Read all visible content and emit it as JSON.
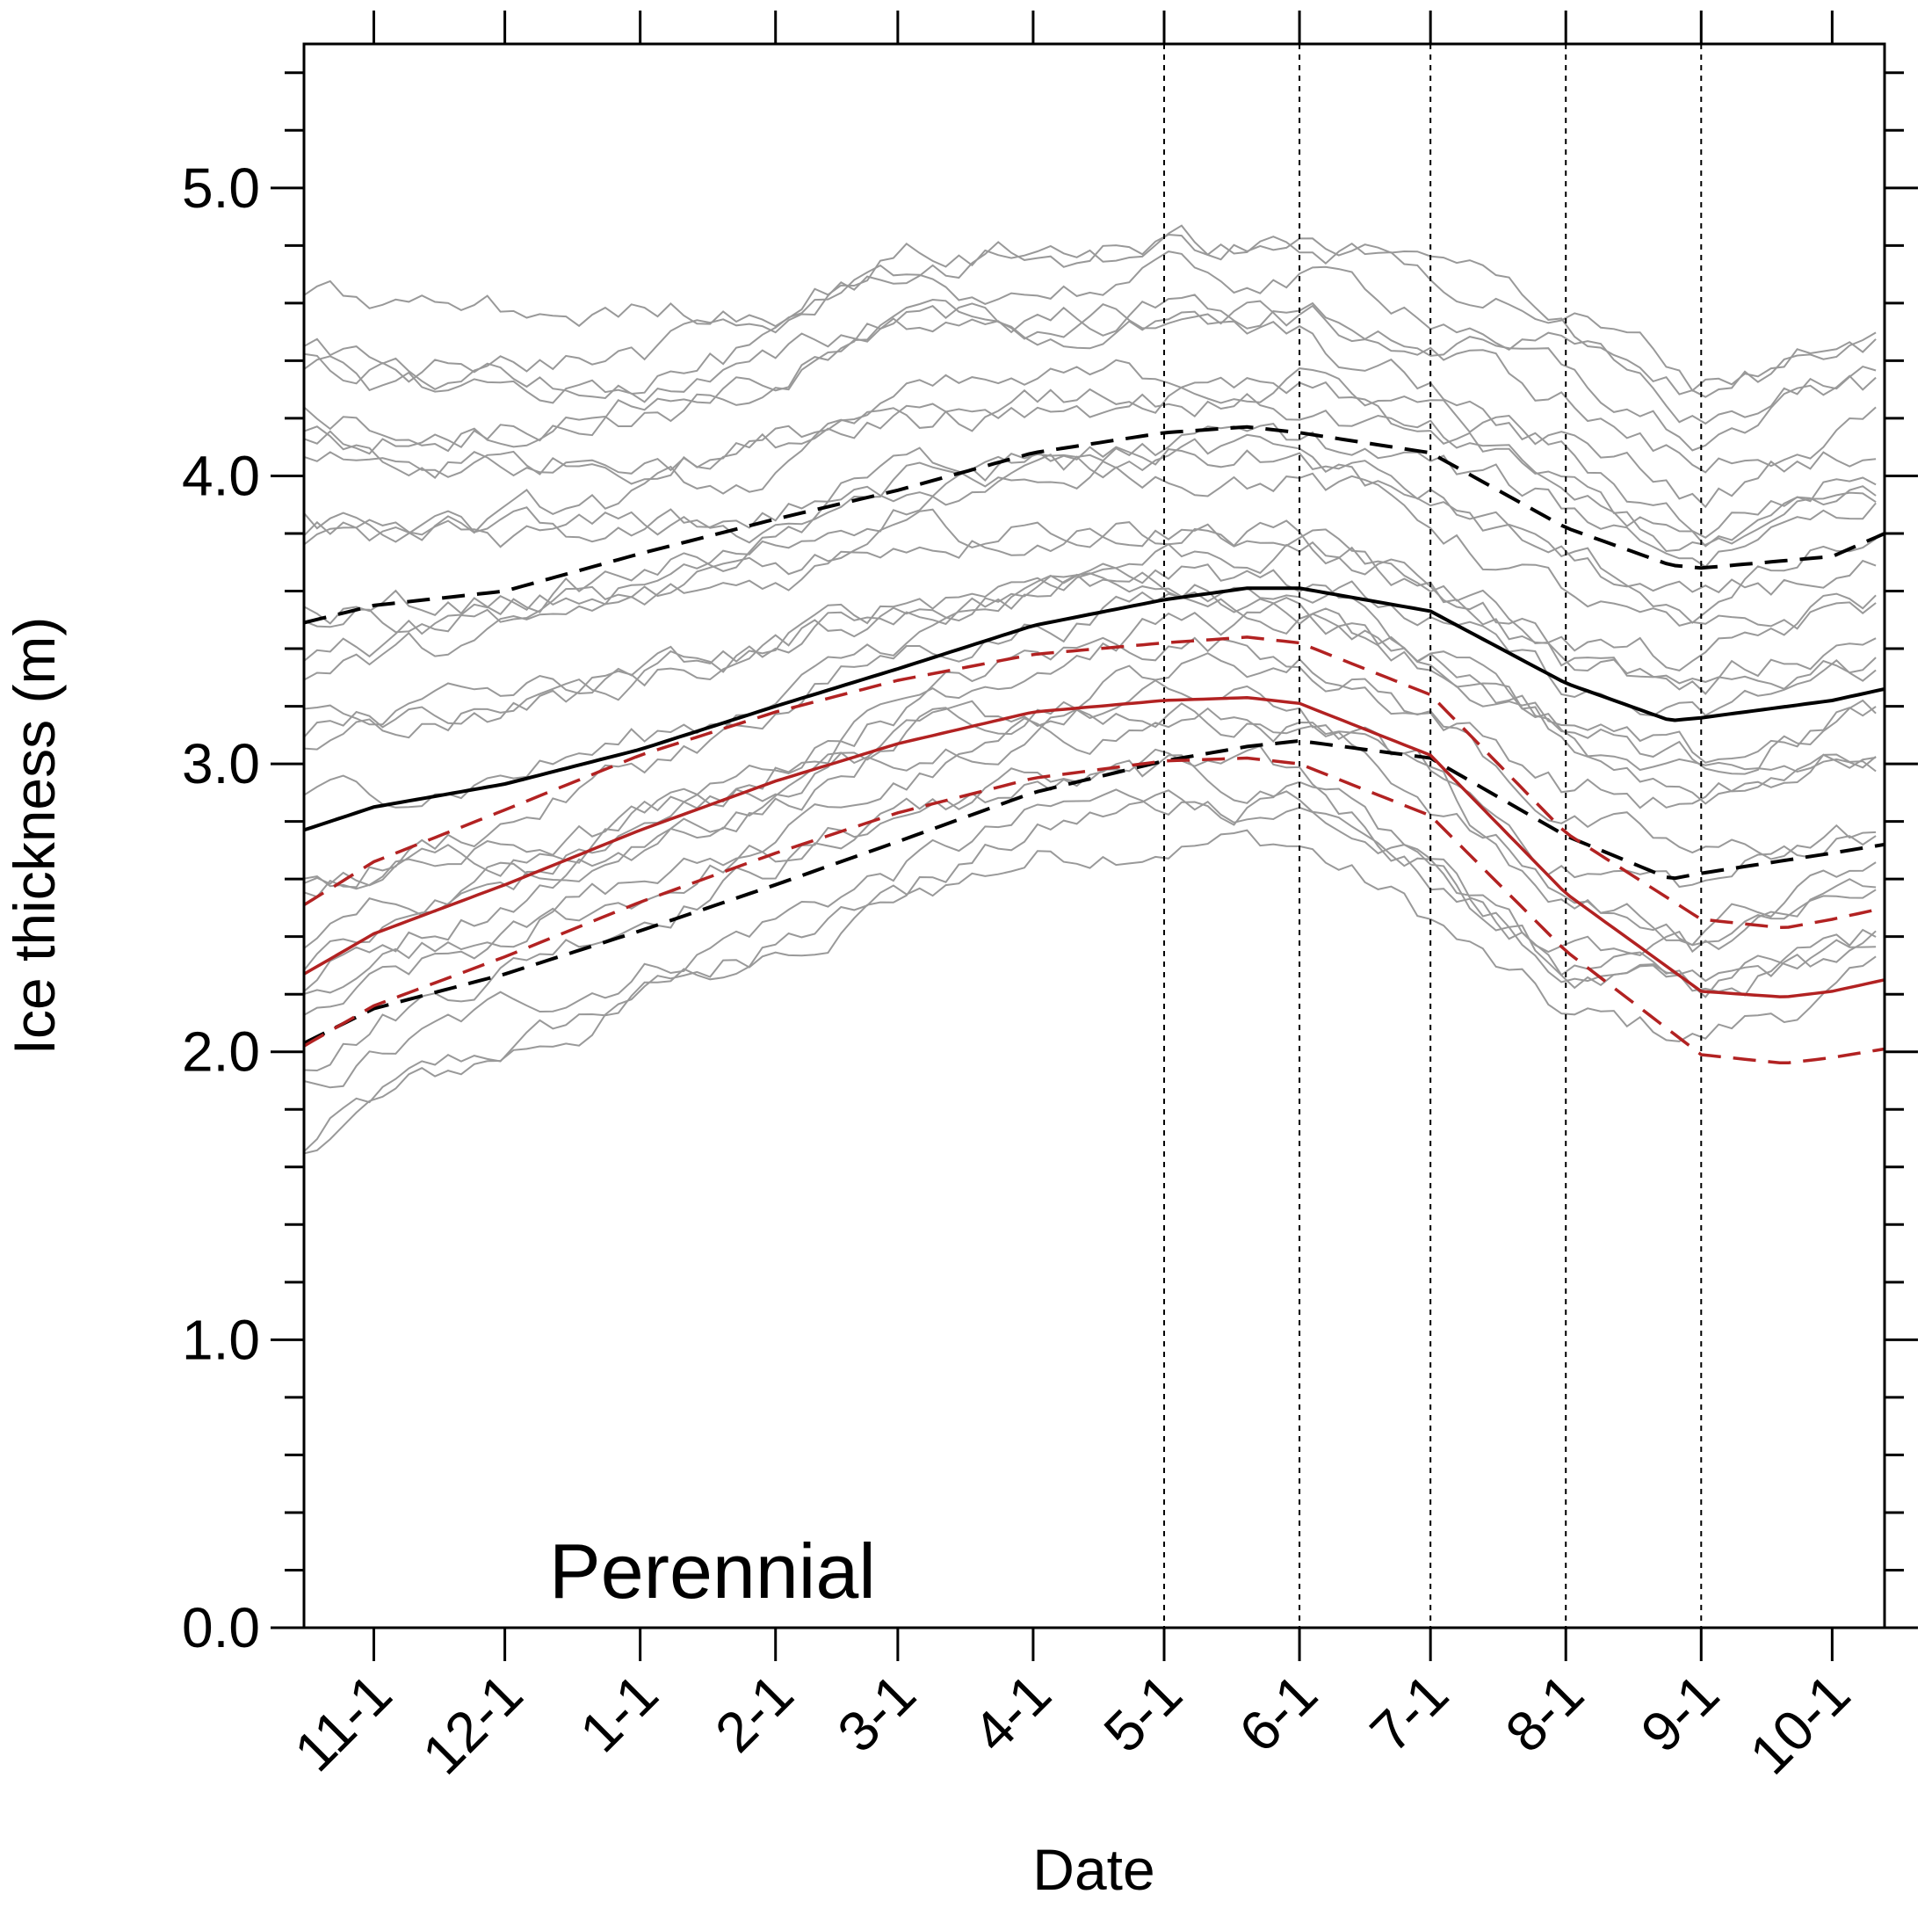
{
  "chart_data": {
    "type": "line",
    "title": "",
    "annotation": "Perennial",
    "xlabel": "Date",
    "ylabel": "Ice thickness (m)",
    "ylim": [
      0.0,
      5.5
    ],
    "x_axis": {
      "start": "10-16",
      "end": "10-13",
      "ticks": [
        "11-1",
        "12-1",
        "1-1",
        "2-1",
        "3-1",
        "4-1",
        "5-1",
        "6-1",
        "7-1",
        "8-1",
        "9-1",
        "10-1"
      ]
    },
    "y_ticks": [
      "0.0",
      "1.0",
      "2.0",
      "3.0",
      "4.0",
      "5.0"
    ],
    "vertical_reference_lines": [
      "5-1",
      "6-1",
      "7-1",
      "8-1",
      "9-1"
    ],
    "grid": false,
    "colors": {
      "ensemble": "#999999",
      "black": "#000000",
      "red": "#b22222"
    },
    "series": [
      {
        "style": "black-solid",
        "x": [
          "10-16",
          "11-1",
          "12-1",
          "1-1",
          "2-1",
          "3-1",
          "4-1",
          "5-1",
          "5-20",
          "6-1",
          "7-1",
          "8-1",
          "8-25",
          "9-1",
          "10-1",
          "10-13"
        ],
        "values": [
          2.77,
          2.85,
          2.93,
          3.05,
          3.2,
          3.33,
          3.48,
          3.57,
          3.61,
          3.61,
          3.53,
          3.28,
          3.15,
          3.16,
          3.22,
          3.26
        ]
      },
      {
        "style": "black-dashed",
        "x": [
          "10-16",
          "11-1",
          "12-1",
          "1-1",
          "2-1",
          "3-1",
          "4-1",
          "5-1",
          "5-20",
          "6-1",
          "7-1",
          "8-1",
          "8-25",
          "9-1",
          "10-1",
          "10-13"
        ],
        "values": [
          3.49,
          3.55,
          3.6,
          3.73,
          3.85,
          3.95,
          4.08,
          4.15,
          4.17,
          4.15,
          4.08,
          3.82,
          3.69,
          3.68,
          3.72,
          3.8
        ]
      },
      {
        "style": "black-dashed",
        "x": [
          "10-16",
          "11-1",
          "12-1",
          "1-1",
          "2-1",
          "3-1",
          "4-1",
          "5-1",
          "5-20",
          "6-1",
          "7-1",
          "8-1",
          "8-25",
          "9-1",
          "10-1",
          "10-13"
        ],
        "values": [
          2.03,
          2.15,
          2.27,
          2.42,
          2.58,
          2.73,
          2.9,
          3.01,
          3.06,
          3.08,
          3.02,
          2.75,
          2.6,
          2.62,
          2.69,
          2.72
        ]
      },
      {
        "style": "red-solid",
        "x": [
          "10-16",
          "11-1",
          "12-1",
          "1-1",
          "2-1",
          "3-1",
          "4-1",
          "5-1",
          "5-20",
          "6-1",
          "7-1",
          "8-1",
          "9-1",
          "9-20",
          "10-1",
          "10-13"
        ],
        "values": [
          2.27,
          2.41,
          2.58,
          2.77,
          2.94,
          3.07,
          3.18,
          3.22,
          3.23,
          3.21,
          3.03,
          2.55,
          2.21,
          2.19,
          2.21,
          2.25
        ]
      },
      {
        "style": "red-dashed",
        "x": [
          "10-16",
          "11-1",
          "12-1",
          "1-1",
          "2-1",
          "3-1",
          "4-1",
          "5-1",
          "5-20",
          "6-1",
          "7-1",
          "8-1",
          "9-1",
          "9-20",
          "10-1",
          "10-13"
        ],
        "values": [
          2.51,
          2.66,
          2.84,
          3.03,
          3.18,
          3.29,
          3.38,
          3.42,
          3.44,
          3.42,
          3.24,
          2.76,
          2.46,
          2.43,
          2.46,
          2.5
        ]
      },
      {
        "style": "red-dashed",
        "x": [
          "10-16",
          "11-1",
          "12-1",
          "1-1",
          "2-1",
          "3-1",
          "4-1",
          "5-1",
          "5-20",
          "6-1",
          "7-1",
          "8-1",
          "9-1",
          "9-20",
          "10-1",
          "10-13"
        ],
        "values": [
          2.02,
          2.16,
          2.33,
          2.52,
          2.69,
          2.83,
          2.95,
          3.01,
          3.02,
          3.0,
          2.82,
          2.35,
          1.99,
          1.96,
          1.98,
          2.01
        ]
      }
    ],
    "ensemble_members": {
      "count": 31,
      "color": "#999999",
      "x": [
        "10-16",
        "11-1",
        "12-1",
        "1-1",
        "2-1",
        "3-1",
        "4-1",
        "5-1",
        "6-1",
        "7-1",
        "8-1",
        "9-1",
        "10-1",
        "10-13"
      ],
      "upper_envelope": [
        4.66,
        4.6,
        4.58,
        4.6,
        4.66,
        4.85,
        4.85,
        4.87,
        4.85,
        4.77,
        4.62,
        4.35,
        4.5,
        4.5
      ],
      "lower_envelope": [
        1.61,
        1.75,
        1.92,
        2.1,
        2.28,
        2.45,
        2.62,
        2.72,
        2.7,
        2.45,
        2.1,
        2.05,
        2.2,
        2.25
      ]
    }
  }
}
